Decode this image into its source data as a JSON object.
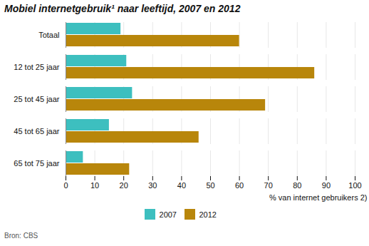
{
  "chart_data": {
    "type": "bar",
    "orientation": "horizontal",
    "title": "Mobiel internetgebruik¹ naar leeftijd, 2007 en 2012",
    "categories": [
      "65 tot 75 jaar",
      "45 tot 65 jaar",
      "25 tot 45 jaar",
      "12 tot 25 jaar",
      "Totaal"
    ],
    "series": [
      {
        "name": "2007",
        "color": "#3DBFBF",
        "values": [
          6,
          15,
          23,
          21,
          19
        ]
      },
      {
        "name": "2012",
        "color": "#B8860B",
        "values": [
          22,
          46,
          69,
          86,
          60
        ]
      }
    ],
    "xlabel": "% van internet gebruikers 2)",
    "xlim": [
      0,
      100
    ],
    "xticks": [
      0,
      10,
      20,
      30,
      40,
      50,
      60,
      70,
      80,
      90,
      100
    ],
    "grid": true,
    "legend": "bottom",
    "annotations": [
      "Bron: CBS"
    ]
  }
}
